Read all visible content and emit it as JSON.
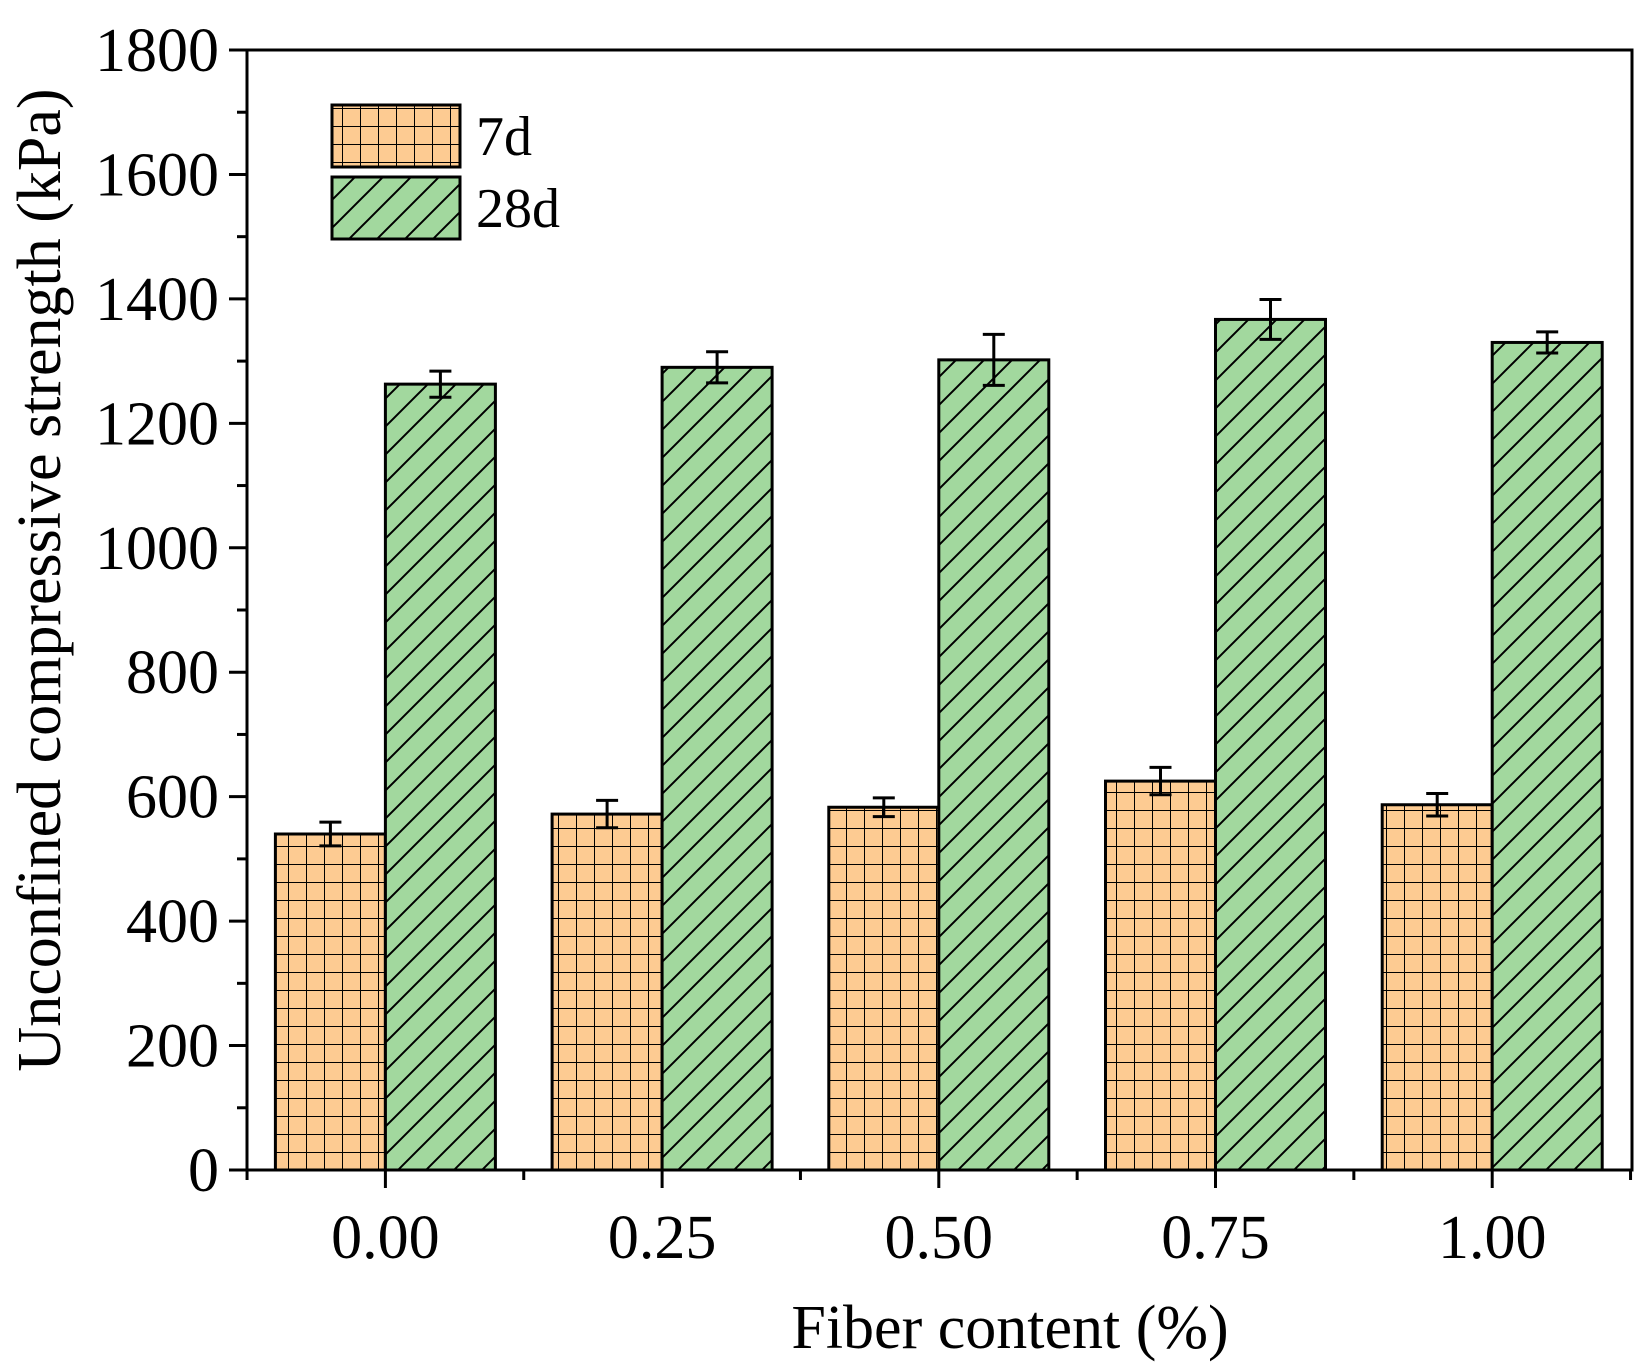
{
  "chart_data": {
    "type": "bar",
    "title": "",
    "xlabel": "Fiber content (%)",
    "ylabel": "Unconfined compressive strength (kPa)",
    "categories": [
      "0.00",
      "0.25",
      "0.50",
      "0.75",
      "1.00"
    ],
    "ylim": [
      0,
      1800
    ],
    "yticks": [
      "0",
      "200",
      "400",
      "600",
      "800",
      "1000",
      "1200",
      "1400",
      "1600",
      "1800"
    ],
    "legend_position": "top-left",
    "series": [
      {
        "name": "7d",
        "values": [
          540,
          572,
          583,
          625,
          587
        ],
        "errors": [
          19,
          22,
          15,
          22,
          18
        ],
        "color": "#FDCB92",
        "pattern": "grid"
      },
      {
        "name": "28d",
        "values": [
          1263,
          1290,
          1302,
          1367,
          1330
        ],
        "errors": [
          21,
          25,
          41,
          32,
          17
        ],
        "color": "#A2D89E",
        "pattern": "diagonal"
      }
    ]
  }
}
